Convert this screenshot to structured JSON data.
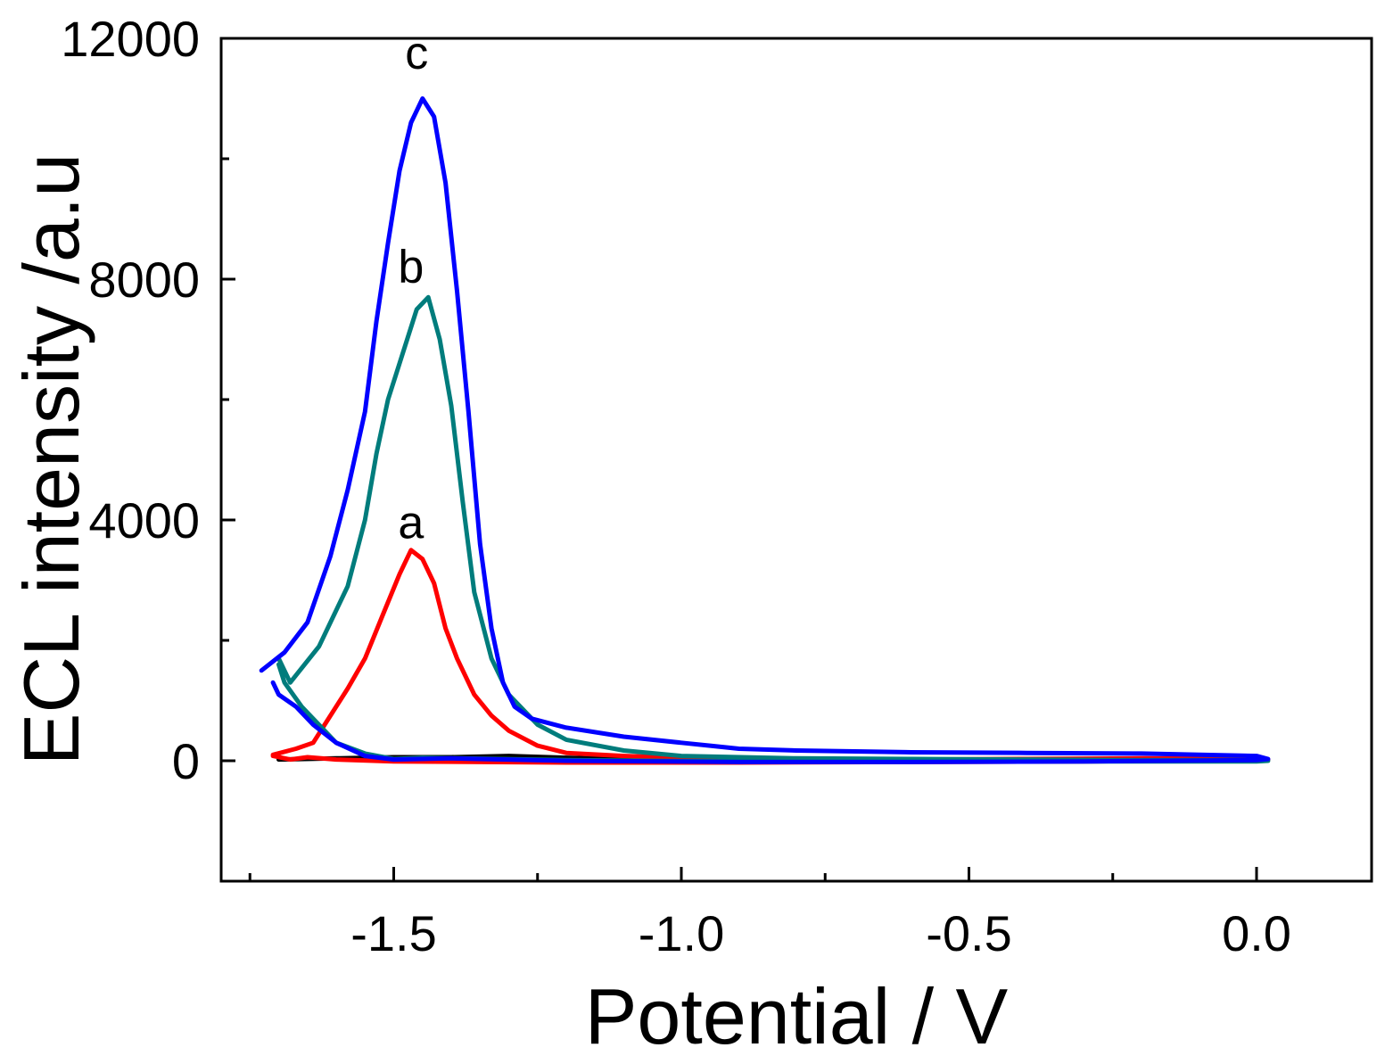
{
  "chart_data": {
    "type": "line",
    "title": "",
    "xlabel": "Potential / V",
    "ylabel": "ECL intensity /a.u",
    "xlim": [
      -1.8,
      0.2
    ],
    "ylim": [
      -2000,
      12000
    ],
    "xticks": [
      {
        "value": -1.5,
        "label": "-1.5"
      },
      {
        "value": -1.0,
        "label": "-1.0"
      },
      {
        "value": -0.5,
        "label": "-0.5"
      },
      {
        "value": 0.0,
        "label": "0.0"
      }
    ],
    "yticks": [
      {
        "value": 0,
        "label": "0"
      },
      {
        "value": 4000,
        "label": "4000"
      },
      {
        "value": 8000,
        "label": "8000"
      },
      {
        "value": 12000,
        "label": "12000"
      }
    ],
    "series": [
      {
        "name": "a",
        "color": "#ff0000",
        "label": "a",
        "label_at": [
          -1.47,
          3700
        ],
        "x": [
          -1.71,
          -1.67,
          -1.64,
          -1.62,
          -1.58,
          -1.55,
          -1.52,
          -1.49,
          -1.47,
          -1.45,
          -1.43,
          -1.41,
          -1.39,
          -1.36,
          -1.33,
          -1.3,
          -1.25,
          -1.2,
          -1.1,
          -1.0,
          -0.8,
          -0.6,
          -0.4,
          -0.2,
          0.0,
          0.02,
          0.0,
          -0.3,
          -0.6,
          -0.9,
          -1.2,
          -1.5,
          -1.6,
          -1.65,
          -1.68,
          -1.71
        ],
        "y": [
          100,
          200,
          300,
          600,
          1200,
          1700,
          2400,
          3100,
          3500,
          3350,
          2950,
          2200,
          1700,
          1100,
          750,
          500,
          250,
          130,
          80,
          50,
          30,
          20,
          30,
          40,
          30,
          20,
          10,
          -10,
          -20,
          -30,
          -30,
          -10,
          20,
          60,
          20,
          80
        ]
      },
      {
        "name": "b",
        "color": "#007c7c",
        "label": "b",
        "label_at": [
          -1.47,
          7950
        ],
        "x": [
          -1.7,
          -1.68,
          -1.63,
          -1.58,
          -1.55,
          -1.53,
          -1.51,
          -1.49,
          -1.46,
          -1.44,
          -1.42,
          -1.4,
          -1.38,
          -1.36,
          -1.33,
          -1.3,
          -1.25,
          -1.2,
          -1.1,
          -1.0,
          -0.8,
          -0.6,
          -0.4,
          -0.2,
          0.0,
          0.02,
          0.0,
          -0.3,
          -0.6,
          -0.9,
          -1.2,
          -1.45,
          -1.5,
          -1.55,
          -1.6,
          -1.64,
          -1.66,
          -1.69,
          -1.7
        ],
        "y": [
          1700,
          1300,
          1900,
          2900,
          4000,
          5100,
          6000,
          6600,
          7500,
          7700,
          7000,
          5900,
          4300,
          2800,
          1700,
          1100,
          600,
          350,
          170,
          80,
          40,
          30,
          20,
          10,
          10,
          0,
          -10,
          -10,
          -10,
          -10,
          10,
          50,
          30,
          120,
          300,
          700,
          900,
          1300,
          1600
        ]
      },
      {
        "name": "c",
        "color": "#0000ff",
        "label": "c",
        "label_at": [
          -1.46,
          11500
        ],
        "x": [
          -1.73,
          -1.69,
          -1.65,
          -1.61,
          -1.58,
          -1.55,
          -1.53,
          -1.51,
          -1.49,
          -1.47,
          -1.45,
          -1.43,
          -1.41,
          -1.39,
          -1.37,
          -1.35,
          -1.33,
          -1.31,
          -1.29,
          -1.26,
          -1.2,
          -1.1,
          -1.0,
          -0.95,
          -0.9,
          -0.8,
          -0.6,
          -0.4,
          -0.2,
          0.0,
          0.02,
          0.0,
          -0.3,
          -0.6,
          -0.9,
          -1.2,
          -1.4,
          -1.5,
          -1.55,
          -1.6,
          -1.64,
          -1.67,
          -1.7,
          -1.71
        ],
        "y": [
          1500,
          1800,
          2300,
          3400,
          4500,
          5800,
          7300,
          8600,
          9800,
          10600,
          11000,
          10700,
          9600,
          7800,
          5800,
          3600,
          2200,
          1300,
          900,
          700,
          550,
          400,
          300,
          250,
          200,
          170,
          140,
          130,
          120,
          80,
          30,
          10,
          -10,
          -20,
          -20,
          0,
          40,
          20,
          80,
          300,
          600,
          900,
          1100,
          1300
        ]
      },
      {
        "name": "baseline",
        "color": "#000000",
        "label": "",
        "x": [
          -1.7,
          -1.6,
          -1.5,
          -1.4,
          -1.3,
          -1.2,
          -1.1,
          -1.0
        ],
        "y": [
          20,
          40,
          60,
          60,
          80,
          50,
          30,
          10
        ]
      }
    ]
  }
}
